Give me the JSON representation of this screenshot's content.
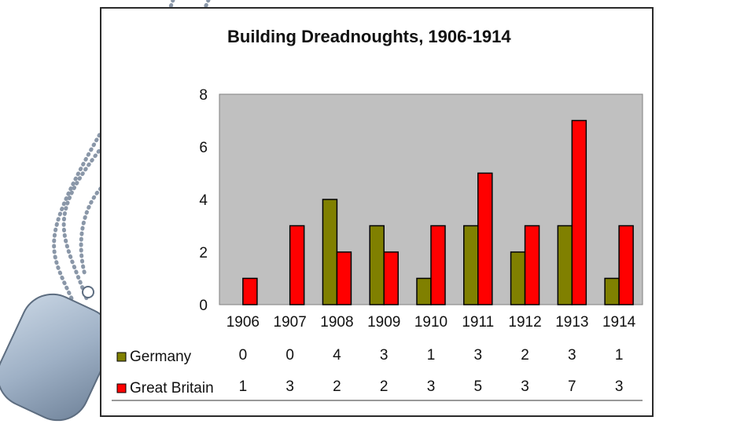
{
  "colors": {
    "germany": "#808000",
    "great_britain": "#ff0000",
    "plot_bg": "#c0c0c0",
    "panel_border": "#2a2a2a",
    "tag_metal": "#9fb1c6"
  },
  "decor": {
    "left_image": "dog-tags-with-ball-chain"
  },
  "chart_data": {
    "type": "bar",
    "title": "Building Dreadnoughts, 1906-1914",
    "categories": [
      "1906",
      "1907",
      "1908",
      "1909",
      "1910",
      "1911",
      "1912",
      "1913",
      "1914"
    ],
    "series": [
      {
        "name": "Germany",
        "color": "#808000",
        "values": [
          0,
          0,
          4,
          3,
          1,
          3,
          2,
          3,
          1
        ]
      },
      {
        "name": "Great Britain",
        "color": "#ff0000",
        "values": [
          1,
          3,
          2,
          2,
          3,
          5,
          3,
          7,
          3
        ]
      }
    ],
    "ylim": [
      0,
      8
    ],
    "yticks": [
      0,
      2,
      4,
      6,
      8
    ],
    "xlabel": "",
    "ylabel": "",
    "legend": "data-table-below",
    "data_table": true
  }
}
